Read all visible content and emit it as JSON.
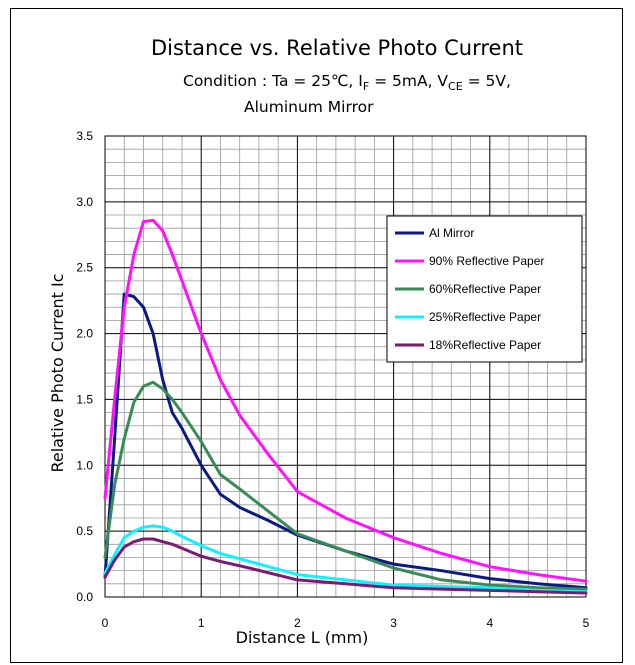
{
  "chart_data": {
    "type": "line",
    "title": "Distance vs. Relative Photo Current",
    "condition": {
      "prefix": "Condition : Ta = 25℃, I",
      "if_sub": "F",
      "if_value": " = 5mA, V",
      "vce_sub": "CE",
      "vce_value": " = 5V,",
      "line2": "Aluminum Mirror"
    },
    "xlabel": "Distance L (mm)",
    "ylabel": "Relative Photo Current Ic",
    "xlim": [
      0,
      5
    ],
    "ylim": [
      0,
      3.5
    ],
    "x_ticks": [
      "0",
      "1",
      "2",
      "3",
      "4",
      "5"
    ],
    "y_ticks": [
      "0.0",
      "0.5",
      "1.0",
      "1.5",
      "2.0",
      "2.5",
      "3.0",
      "3.5"
    ],
    "grid": true,
    "legend_position": "right",
    "series": [
      {
        "name": "Al Mirror",
        "color": "#0a1a80",
        "points": [
          [
            0,
            0.15
          ],
          [
            0.1,
            1.2
          ],
          [
            0.2,
            2.3
          ],
          [
            0.3,
            2.28
          ],
          [
            0.4,
            2.2
          ],
          [
            0.5,
            2.0
          ],
          [
            0.6,
            1.65
          ],
          [
            0.7,
            1.4
          ],
          [
            0.8,
            1.28
          ],
          [
            1.0,
            1.0
          ],
          [
            1.2,
            0.78
          ],
          [
            1.4,
            0.68
          ],
          [
            1.7,
            0.58
          ],
          [
            2.0,
            0.47
          ],
          [
            2.5,
            0.35
          ],
          [
            3.0,
            0.25
          ],
          [
            3.5,
            0.2
          ],
          [
            4.0,
            0.14
          ],
          [
            4.5,
            0.1
          ],
          [
            5.0,
            0.07
          ]
        ]
      },
      {
        "name": "90% Reflective Paper",
        "color": "#ff10ff",
        "points": [
          [
            0,
            0.75
          ],
          [
            0.1,
            1.5
          ],
          [
            0.2,
            2.2
          ],
          [
            0.3,
            2.6
          ],
          [
            0.4,
            2.85
          ],
          [
            0.5,
            2.86
          ],
          [
            0.6,
            2.78
          ],
          [
            0.7,
            2.6
          ],
          [
            0.8,
            2.4
          ],
          [
            1.0,
            2.0
          ],
          [
            1.2,
            1.65
          ],
          [
            1.4,
            1.38
          ],
          [
            1.7,
            1.08
          ],
          [
            2.0,
            0.8
          ],
          [
            2.1,
            0.76
          ],
          [
            2.5,
            0.6
          ],
          [
            3.0,
            0.45
          ],
          [
            3.5,
            0.33
          ],
          [
            4.0,
            0.23
          ],
          [
            4.5,
            0.17
          ],
          [
            5.0,
            0.12
          ]
        ]
      },
      {
        "name": "60%Reflective Paper",
        "color": "#3a8a55",
        "points": [
          [
            0,
            0.3
          ],
          [
            0.1,
            0.85
          ],
          [
            0.2,
            1.2
          ],
          [
            0.3,
            1.48
          ],
          [
            0.4,
            1.6
          ],
          [
            0.5,
            1.63
          ],
          [
            0.6,
            1.58
          ],
          [
            0.7,
            1.5
          ],
          [
            0.8,
            1.4
          ],
          [
            1.0,
            1.18
          ],
          [
            1.2,
            0.93
          ],
          [
            1.4,
            0.82
          ],
          [
            1.7,
            0.65
          ],
          [
            2.0,
            0.48
          ],
          [
            2.5,
            0.35
          ],
          [
            3.0,
            0.22
          ],
          [
            3.5,
            0.13
          ],
          [
            4.0,
            0.09
          ],
          [
            4.5,
            0.07
          ],
          [
            5.0,
            0.06
          ]
        ]
      },
      {
        "name": "25%Reflective Paper",
        "color": "#10f0ff",
        "points": [
          [
            0,
            0.18
          ],
          [
            0.1,
            0.32
          ],
          [
            0.2,
            0.45
          ],
          [
            0.3,
            0.5
          ],
          [
            0.4,
            0.53
          ],
          [
            0.5,
            0.54
          ],
          [
            0.6,
            0.53
          ],
          [
            0.7,
            0.5
          ],
          [
            0.8,
            0.46
          ],
          [
            1.0,
            0.39
          ],
          [
            1.2,
            0.33
          ],
          [
            1.5,
            0.27
          ],
          [
            2.0,
            0.17
          ],
          [
            2.5,
            0.13
          ],
          [
            3.0,
            0.09
          ],
          [
            3.5,
            0.08
          ],
          [
            4.0,
            0.07
          ],
          [
            4.5,
            0.05
          ],
          [
            5.0,
            0.04
          ]
        ]
      },
      {
        "name": "18%Reflective Paper",
        "color": "#7a1a70",
        "points": [
          [
            0,
            0.15
          ],
          [
            0.1,
            0.28
          ],
          [
            0.2,
            0.38
          ],
          [
            0.3,
            0.42
          ],
          [
            0.4,
            0.44
          ],
          [
            0.5,
            0.44
          ],
          [
            0.6,
            0.42
          ],
          [
            0.7,
            0.4
          ],
          [
            0.8,
            0.37
          ],
          [
            1.0,
            0.31
          ],
          [
            1.2,
            0.27
          ],
          [
            1.5,
            0.22
          ],
          [
            2.0,
            0.13
          ],
          [
            2.5,
            0.1
          ],
          [
            3.0,
            0.07
          ],
          [
            3.5,
            0.06
          ],
          [
            4.0,
            0.05
          ],
          [
            4.5,
            0.04
          ],
          [
            5.0,
            0.03
          ]
        ]
      }
    ]
  }
}
